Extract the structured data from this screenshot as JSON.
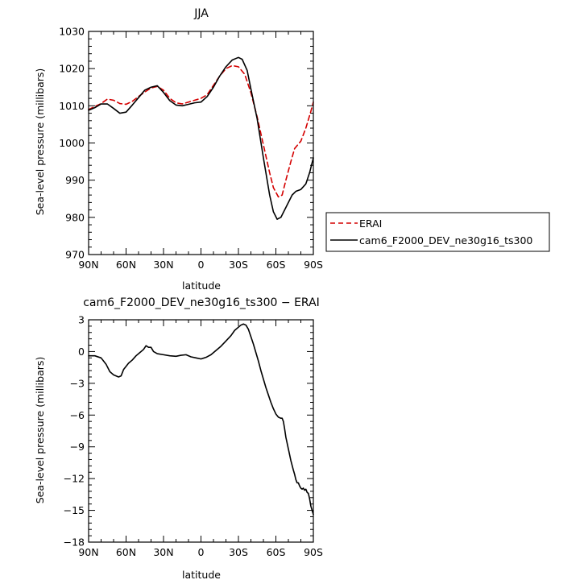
{
  "chart_data": [
    {
      "type": "line",
      "title": "JJA",
      "xlabel": "latitude",
      "ylabel": "Sea-level pressure (millibars)",
      "xlim": [
        90,
        -90
      ],
      "ylim": [
        970,
        1030
      ],
      "x_ticks": [
        90,
        60,
        30,
        0,
        -30,
        -60,
        -90
      ],
      "x_tick_labels": [
        "90N",
        "60N",
        "30N",
        "0",
        "30S",
        "60S",
        "90S"
      ],
      "y_ticks": [
        970,
        980,
        990,
        1000,
        1010,
        1020,
        1030
      ],
      "y_tick_labels": [
        "970",
        "980",
        "990",
        "1000",
        "1010",
        "1020",
        "1030"
      ],
      "legend": "right",
      "series": [
        {
          "name": "ERAI",
          "color": "#d40000",
          "dash": true,
          "points": [
            [
              90,
              1009
            ],
            [
              80,
              1010.6
            ],
            [
              75,
              1011.8
            ],
            [
              70,
              1011.5
            ],
            [
              65,
              1010.6
            ],
            [
              60,
              1010.4
            ],
            [
              55,
              1011.2
            ],
            [
              50,
              1012.5
            ],
            [
              45,
              1013.7
            ],
            [
              40,
              1014.8
            ],
            [
              35,
              1015.2
            ],
            [
              30,
              1014.2
            ],
            [
              25,
              1012
            ],
            [
              20,
              1010.8
            ],
            [
              15,
              1010.5
            ],
            [
              10,
              1011
            ],
            [
              5,
              1011.5
            ],
            [
              0,
              1012
            ],
            [
              -5,
              1013
            ],
            [
              -10,
              1015.5
            ],
            [
              -15,
              1018
            ],
            [
              -20,
              1020
            ],
            [
              -25,
              1020.8
            ],
            [
              -30,
              1020.5
            ],
            [
              -35,
              1018.5
            ],
            [
              -40,
              1013.5
            ],
            [
              -45,
              1007
            ],
            [
              -50,
              999.5
            ],
            [
              -55,
              992
            ],
            [
              -58,
              988
            ],
            [
              -62,
              985.5
            ],
            [
              -65,
              986
            ],
            [
              -68,
              990
            ],
            [
              -72,
              995
            ],
            [
              -75,
              998.5
            ],
            [
              -80,
              1000.5
            ],
            [
              -84,
              1004
            ],
            [
              -88,
              1008.5
            ],
            [
              -90,
              1011
            ]
          ]
        },
        {
          "name": "cam6_F2000_DEV_ne30g16_ts300",
          "color": "#000000",
          "dash": false,
          "points": [
            [
              90,
              1008.8
            ],
            [
              85,
              1009.5
            ],
            [
              80,
              1010.5
            ],
            [
              75,
              1010.5
            ],
            [
              70,
              1009.3
            ],
            [
              65,
              1008
            ],
            [
              60,
              1008.3
            ],
            [
              55,
              1010.2
            ],
            [
              50,
              1012.2
            ],
            [
              45,
              1014.2
            ],
            [
              40,
              1015
            ],
            [
              35,
              1015.4
            ],
            [
              30,
              1013.6
            ],
            [
              25,
              1011.4
            ],
            [
              20,
              1010.2
            ],
            [
              15,
              1010
            ],
            [
              10,
              1010.4
            ],
            [
              5,
              1010.8
            ],
            [
              0,
              1011
            ],
            [
              -5,
              1012.5
            ],
            [
              -10,
              1015
            ],
            [
              -15,
              1018
            ],
            [
              -20,
              1020.5
            ],
            [
              -25,
              1022.3
            ],
            [
              -30,
              1023
            ],
            [
              -33,
              1022.5
            ],
            [
              -37,
              1019.5
            ],
            [
              -40,
              1014.5
            ],
            [
              -45,
              1006.5
            ],
            [
              -50,
              996
            ],
            [
              -55,
              986
            ],
            [
              -58,
              981.5
            ],
            [
              -61,
              979.5
            ],
            [
              -64,
              980
            ],
            [
              -67,
              982
            ],
            [
              -70,
              984
            ],
            [
              -73,
              986
            ],
            [
              -76,
              987
            ],
            [
              -80,
              987.5
            ],
            [
              -84,
              989
            ],
            [
              -87,
              992
            ],
            [
              -90,
              996
            ]
          ]
        }
      ]
    },
    {
      "type": "line",
      "title": "cam6_F2000_DEV_ne30g16_ts300 − ERAI",
      "xlabel": "latitude",
      "ylabel": "Sea-level pressure (millibars)",
      "xlim": [
        90,
        -90
      ],
      "ylim": [
        -18,
        3
      ],
      "x_ticks": [
        90,
        60,
        30,
        0,
        -30,
        -60,
        -90
      ],
      "x_tick_labels": [
        "90N",
        "60N",
        "30N",
        "0",
        "30S",
        "60S",
        "90S"
      ],
      "y_ticks": [
        3,
        0,
        -3,
        -6,
        -9,
        -12,
        -15,
        -18
      ],
      "y_tick_labels": [
        "3",
        "0",
        "−3",
        "−6",
        "−9",
        "−12",
        "−15",
        "−18"
      ],
      "series": [
        {
          "color": "#000000",
          "dash": false,
          "points": [
            [
              90,
              -0.4
            ],
            [
              85,
              -0.4
            ],
            [
              80,
              -0.6
            ],
            [
              76,
              -1.2
            ],
            [
              73,
              -1.9
            ],
            [
              70,
              -2.2
            ],
            [
              66,
              -2.4
            ],
            [
              64,
              -2.3
            ],
            [
              62,
              -1.7
            ],
            [
              58,
              -1.1
            ],
            [
              55,
              -0.8
            ],
            [
              52,
              -0.4
            ],
            [
              49,
              -0.1
            ],
            [
              46,
              0.2
            ],
            [
              44,
              0.55
            ],
            [
              42,
              0.4
            ],
            [
              40,
              0.4
            ],
            [
              38,
              0.0
            ],
            [
              35,
              -0.2
            ],
            [
              30,
              -0.3
            ],
            [
              25,
              -0.4
            ],
            [
              20,
              -0.45
            ],
            [
              16,
              -0.35
            ],
            [
              12,
              -0.3
            ],
            [
              8,
              -0.5
            ],
            [
              4,
              -0.6
            ],
            [
              0,
              -0.7
            ],
            [
              -4,
              -0.55
            ],
            [
              -8,
              -0.3
            ],
            [
              -12,
              0.1
            ],
            [
              -16,
              0.5
            ],
            [
              -20,
              1.0
            ],
            [
              -24,
              1.5
            ],
            [
              -27,
              2.0
            ],
            [
              -30,
              2.3
            ],
            [
              -32,
              2.5
            ],
            [
              -34,
              2.6
            ],
            [
              -36,
              2.5
            ],
            [
              -38,
              2.1
            ],
            [
              -40,
              1.4
            ],
            [
              -42,
              0.7
            ],
            [
              -44,
              -0.1
            ],
            [
              -46,
              -0.9
            ],
            [
              -48,
              -1.8
            ],
            [
              -50,
              -2.6
            ],
            [
              -52,
              -3.4
            ],
            [
              -54,
              -4.1
            ],
            [
              -56,
              -4.8
            ],
            [
              -58,
              -5.4
            ],
            [
              -60,
              -5.9
            ],
            [
              -62,
              -6.2
            ],
            [
              -64,
              -6.3
            ],
            [
              -65,
              -6.3
            ],
            [
              -66,
              -6.6
            ],
            [
              -67,
              -7.3
            ],
            [
              -68,
              -8.1
            ],
            [
              -70,
              -9.2
            ],
            [
              -72,
              -10.3
            ],
            [
              -74,
              -11.2
            ],
            [
              -75,
              -11.6
            ],
            [
              -76,
              -12.1
            ],
            [
              -77,
              -12.4
            ],
            [
              -78,
              -12.4
            ],
            [
              -79,
              -12.7
            ],
            [
              -80,
              -12.9
            ],
            [
              -81,
              -13.0
            ],
            [
              -82,
              -12.9
            ],
            [
              -83,
              -13.1
            ],
            [
              -84,
              -13.0
            ],
            [
              -85,
              -13.3
            ],
            [
              -86,
              -13.4
            ],
            [
              -87,
              -13.9
            ],
            [
              -88,
              -14.6
            ],
            [
              -90,
              -15.4
            ]
          ]
        }
      ]
    }
  ]
}
